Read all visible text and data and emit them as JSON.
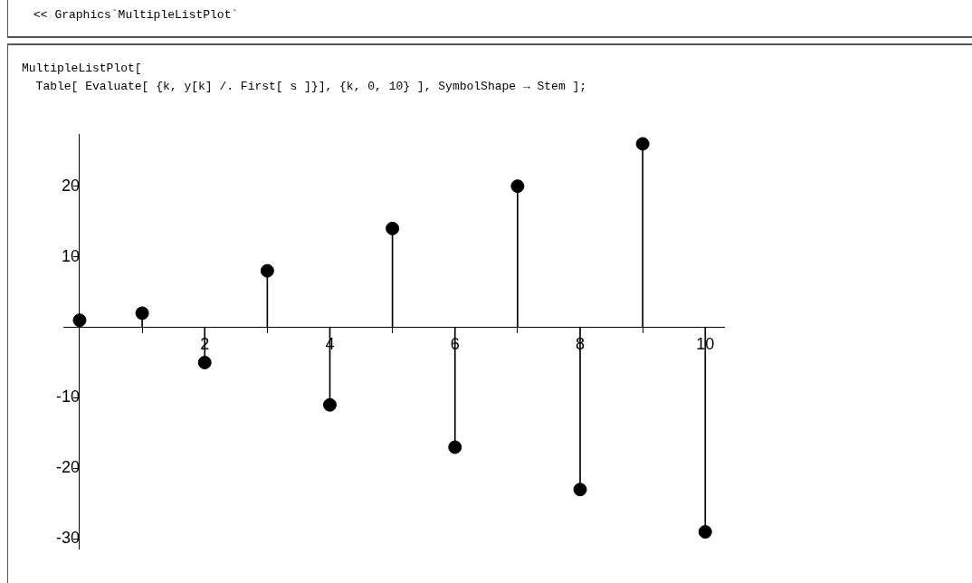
{
  "chart_data": {
    "type": "lollipop",
    "annotations": [
      "<< Graphics`MultipleListPlot`",
      "MultipleListPlot[\n  Table[ Evaluate[ {k, y[k] /. First[ s ]}], {k, 0, 10} ], SymbolShape → Stem ];"
    ],
    "x": [
      0,
      1,
      2,
      3,
      4,
      5,
      6,
      7,
      8,
      9,
      10
    ],
    "values": [
      1,
      2,
      -5,
      8,
      -11,
      14,
      -17,
      20,
      -23,
      26,
      -29
    ],
    "color": "#000000",
    "marker": "circle",
    "xlim": [
      -0.26,
      10.3
    ],
    "xticks": [
      2,
      4,
      6,
      8,
      10
    ],
    "ylim": [
      -31.4,
      27.4
    ],
    "yticks": [
      -30,
      -20,
      -10,
      10,
      20
    ],
    "grid": false,
    "legend": false
  }
}
